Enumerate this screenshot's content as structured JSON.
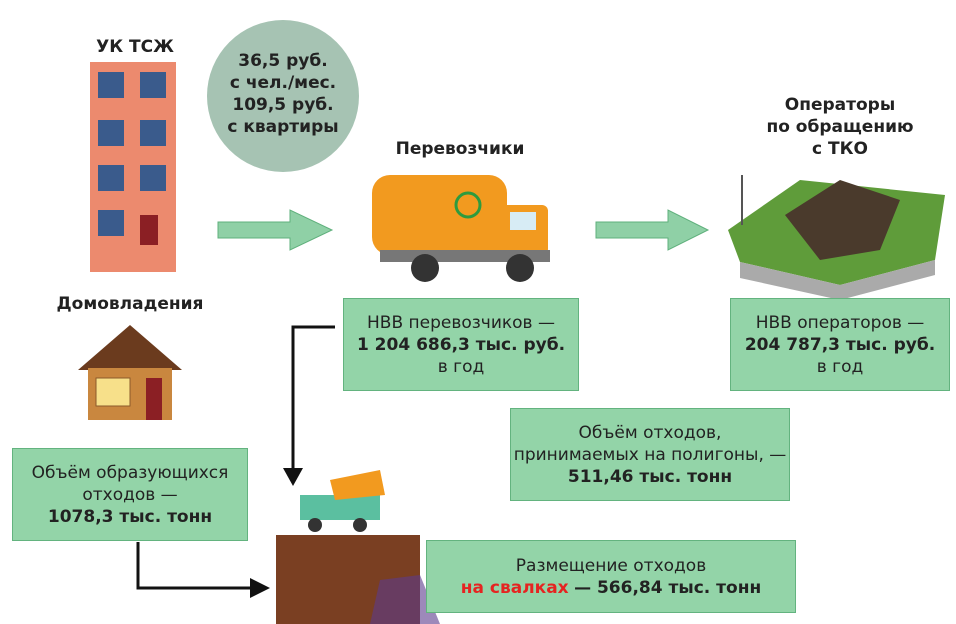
{
  "labels": {
    "uk_tszh": "УК ТСЖ",
    "households": "Домовладения",
    "carriers": "Перевозчики",
    "operators": [
      "Операторы",
      "по обращению",
      "с ТКО"
    ]
  },
  "tariff": [
    "36,5 руб.",
    "с чел./мес.",
    "109,5 руб.",
    "с квартиры"
  ],
  "boxes": {
    "carriers_nvv": [
      "НВВ перевозчиков —",
      "1 204 686,3 тыс. руб.",
      "в год"
    ],
    "operators_nvv": [
      "НВВ операторов —",
      "204 787,3 тыс. руб.",
      "в год"
    ],
    "landfill_volume": [
      "Объём отходов,",
      "принимаемых на полигоны, —",
      "511,46 тыс. тонн"
    ],
    "generated_volume": [
      "Объём образующихся",
      "отходов —",
      "1078,3 тыс. тонн"
    ],
    "dumps": {
      "title": "Размещение отходов",
      "highlight": "на свалках",
      "value": "— 566,84 тыс. тонн"
    }
  }
}
